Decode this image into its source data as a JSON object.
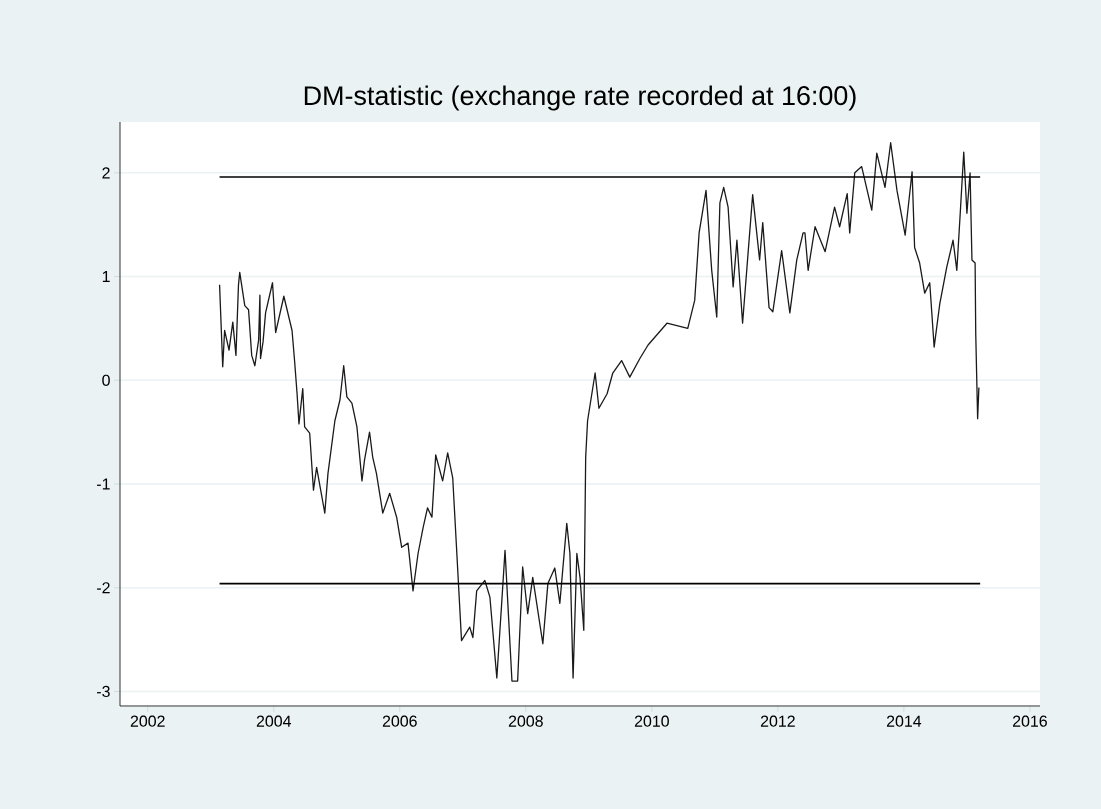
{
  "chart_data": {
    "type": "line",
    "title": "DM-statistic (exchange rate recorded at 16:00)",
    "xlim": [
      2001.56,
      2016.16
    ],
    "ylim": [
      -3.14,
      2.49
    ],
    "xticks": [
      2002,
      2004,
      2006,
      2008,
      2010,
      2012,
      2014,
      2016
    ],
    "yticks": [
      -3,
      -2,
      -1,
      0,
      1,
      2
    ],
    "grid": "y",
    "marker": "none",
    "line_style": "solid",
    "series": [
      {
        "color": "#1a1a1a",
        "x": [
          2003.14,
          2003.19,
          2003.22,
          2003.29,
          2003.35,
          2003.4,
          2003.44,
          2003.46,
          2003.54,
          2003.6,
          2003.65,
          2003.7,
          2003.76,
          2003.78,
          2003.79,
          2003.83,
          2003.87,
          2003.98,
          2004.03,
          2004.16,
          2004.29,
          2004.33,
          2004.37,
          2004.4,
          2004.46,
          2004.49,
          2004.57,
          2004.63,
          2004.68,
          2004.81,
          2004.86,
          2004.97,
          2005.05,
          2005.11,
          2005.16,
          2005.24,
          2005.32,
          2005.4,
          2005.44,
          2005.52,
          2005.57,
          2005.63,
          2005.73,
          2005.84,
          2005.95,
          2006.03,
          2006.13,
          2006.21,
          2006.29,
          2006.37,
          2006.44,
          2006.51,
          2006.57,
          2006.68,
          2006.76,
          2006.84,
          2006.9,
          2006.98,
          2007.11,
          2007.16,
          2007.22,
          2007.35,
          2007.43,
          2007.54,
          2007.62,
          2007.67,
          2007.78,
          2007.87,
          2007.95,
          2008.03,
          2008.11,
          2008.27,
          2008.35,
          2008.46,
          2008.54,
          2008.65,
          2008.7,
          2008.75,
          2008.81,
          2008.86,
          2008.92,
          2008.95,
          2008.98,
          2009.1,
          2009.16,
          2009.29,
          2009.38,
          2009.52,
          2009.65,
          2009.81,
          2009.94,
          2010.24,
          2010.57,
          2010.68,
          2010.75,
          2010.86,
          2010.95,
          2011.03,
          2011.08,
          2011.14,
          2011.21,
          2011.29,
          2011.35,
          2011.44,
          2011.6,
          2011.71,
          2011.76,
          2011.86,
          2011.92,
          2012.06,
          2012.19,
          2012.3,
          2012.4,
          2012.43,
          2012.48,
          2012.59,
          2012.75,
          2012.9,
          2012.98,
          2013.1,
          2013.14,
          2013.22,
          2013.33,
          2013.49,
          2013.57,
          2013.7,
          2013.79,
          2013.89,
          2014.02,
          2014.13,
          2014.17,
          2014.25,
          2014.33,
          2014.41,
          2014.48,
          2014.57,
          2014.68,
          2014.78,
          2014.84,
          2014.89,
          2014.95,
          2015.0,
          2015.05,
          2015.08,
          2015.13,
          2015.14,
          2015.17,
          2015.19
        ],
        "values": [
          0.92,
          0.13,
          0.48,
          0.29,
          0.56,
          0.24,
          0.92,
          1.04,
          0.72,
          0.68,
          0.24,
          0.14,
          0.39,
          0.82,
          0.21,
          0.37,
          0.65,
          0.94,
          0.46,
          0.81,
          0.48,
          0.19,
          -0.13,
          -0.42,
          -0.08,
          -0.45,
          -0.51,
          -1.06,
          -0.84,
          -1.28,
          -0.9,
          -0.39,
          -0.19,
          0.14,
          -0.16,
          -0.22,
          -0.45,
          -0.97,
          -0.77,
          -0.5,
          -0.74,
          -0.9,
          -1.28,
          -1.09,
          -1.32,
          -1.61,
          -1.57,
          -2.03,
          -1.67,
          -1.42,
          -1.23,
          -1.32,
          -0.72,
          -0.97,
          -0.7,
          -0.94,
          -1.61,
          -2.51,
          -2.38,
          -2.48,
          -2.03,
          -1.93,
          -2.09,
          -2.87,
          -2.12,
          -1.64,
          -2.9,
          -2.9,
          -1.8,
          -2.25,
          -1.9,
          -2.54,
          -1.96,
          -1.81,
          -2.15,
          -1.38,
          -1.67,
          -2.87,
          -1.67,
          -1.9,
          -2.41,
          -0.74,
          -0.39,
          0.07,
          -0.27,
          -0.13,
          0.07,
          0.19,
          0.03,
          0.21,
          0.34,
          0.55,
          0.5,
          0.77,
          1.42,
          1.83,
          1.06,
          0.61,
          1.71,
          1.86,
          1.67,
          0.9,
          1.35,
          0.55,
          1.79,
          1.16,
          1.52,
          0.7,
          0.66,
          1.25,
          0.65,
          1.16,
          1.42,
          1.42,
          1.06,
          1.48,
          1.24,
          1.67,
          1.48,
          1.8,
          1.42,
          2.0,
          2.06,
          1.64,
          2.19,
          1.86,
          2.29,
          1.83,
          1.4,
          2.01,
          1.28,
          1.13,
          0.84,
          0.94,
          0.32,
          0.74,
          1.09,
          1.35,
          1.06,
          1.57,
          2.2,
          1.61,
          2.0,
          1.16,
          1.13,
          0.45,
          -0.37,
          -0.07
        ]
      },
      {
        "color": "#000000",
        "x": [
          2003.14,
          2015.21
        ],
        "values": [
          1.96,
          1.96
        ]
      },
      {
        "color": "#000000",
        "x": [
          2003.14,
          2015.21
        ],
        "values": [
          -1.96,
          -1.96
        ]
      }
    ]
  }
}
